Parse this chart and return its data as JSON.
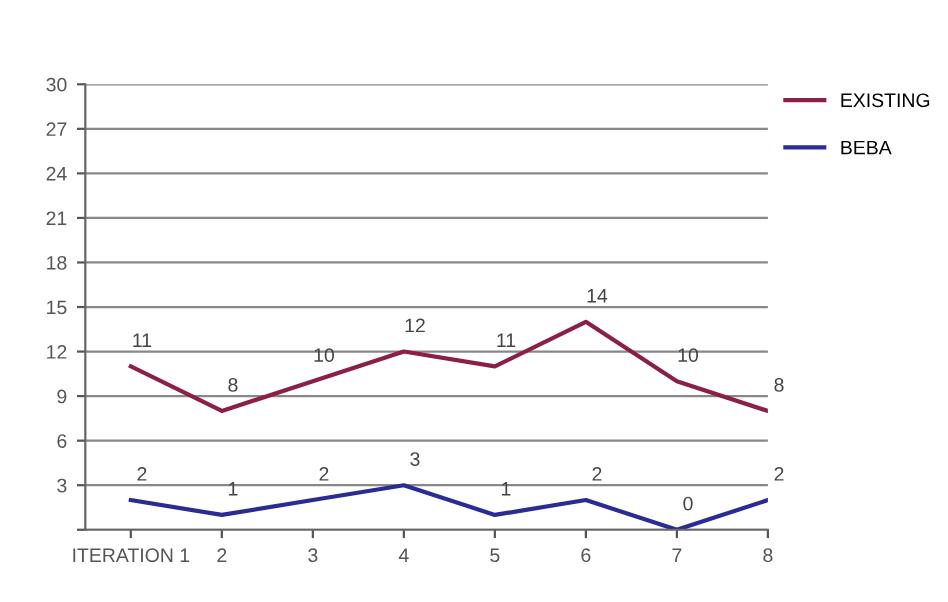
{
  "chart_data": {
    "type": "line",
    "categories": [
      "ITERATION 1",
      "2",
      "3",
      "4",
      "5",
      "6",
      "7",
      "8"
    ],
    "series": [
      {
        "name": "EXISTING",
        "color": "#8b1f45",
        "values": [
          11,
          8,
          10,
          12,
          11,
          14,
          10,
          8
        ]
      },
      {
        "name": "BEBA",
        "color": "#2b2b96",
        "values": [
          2,
          1,
          2,
          3,
          1,
          2,
          0,
          2
        ]
      }
    ],
    "ylim": [
      0,
      30
    ],
    "yticks": [
      {
        "value": 0,
        "label": null
      },
      3,
      6,
      9,
      12,
      15,
      18,
      21,
      24,
      27,
      30
    ],
    "grid": "y",
    "legend": "top right",
    "data_labels": true,
    "marker": "none",
    "line_style": "solid"
  }
}
